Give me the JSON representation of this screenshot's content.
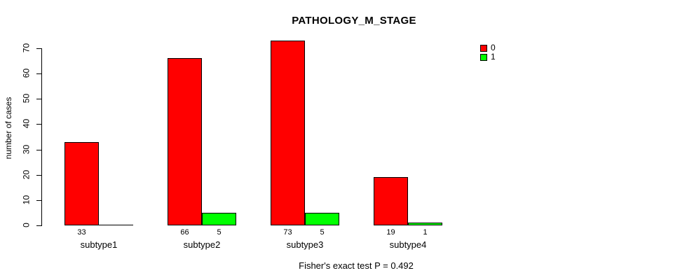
{
  "title": "PATHOLOGY_M_STAGE",
  "y_axis": {
    "label": "number of cases",
    "ticks": [
      0,
      10,
      20,
      30,
      40,
      50,
      60,
      70
    ]
  },
  "legend": {
    "items": [
      {
        "label": "0",
        "color": "#FF0000"
      },
      {
        "label": "1",
        "color": "#00FF00"
      }
    ]
  },
  "annotation": "Fisher's exact test P = 0.492",
  "chart_data": {
    "type": "bar",
    "title": "PATHOLOGY_M_STAGE",
    "categories": [
      "subtype1",
      "subtype2",
      "subtype3",
      "subtype4"
    ],
    "series": [
      {
        "name": "0",
        "color": "#FF0000",
        "values": [
          33,
          66,
          73,
          19
        ],
        "bar_labels": [
          "33",
          "66",
          "73",
          "19"
        ]
      },
      {
        "name": "1",
        "color": "#00FF00",
        "values": [
          0,
          5,
          5,
          1
        ],
        "bar_labels": [
          "",
          "5",
          "5",
          "1"
        ]
      }
    ],
    "xlabel": "",
    "ylabel": "number of cases",
    "ylim": [
      0,
      70
    ],
    "grid": false,
    "legend_position": "top-right",
    "annotation": "Fisher's exact test P = 0.492"
  }
}
